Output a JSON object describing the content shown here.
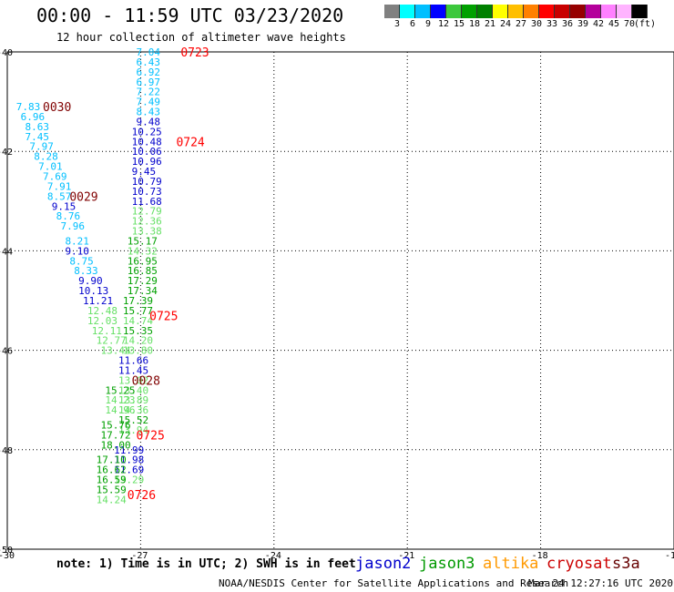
{
  "header": {
    "title": "00:00 - 11:59 UTC 03/23/2020",
    "subtitle": "12 hour collection of altimeter wave heights"
  },
  "legend": {
    "colors": [
      "#808080",
      "#00ffff",
      "#00bfff",
      "#0000ff",
      "#3cc83c",
      "#00a000",
      "#008000",
      "#ffff00",
      "#ffbf00",
      "#ff8000",
      "#ff0000",
      "#c80000",
      "#960000",
      "#b4009b",
      "#ff80ff",
      "#ffb4ff",
      "#000000"
    ],
    "labels": [
      "3",
      "6",
      "9",
      "12",
      "15",
      "18",
      "21",
      "24",
      "27",
      "30",
      "33",
      "36",
      "39",
      "42",
      "45",
      "70",
      "(ft)"
    ]
  },
  "axes": {
    "x_ticks": [
      "-30",
      "-27",
      "-24",
      "-21",
      "-18",
      "-15"
    ],
    "y_ticks": [
      "-40",
      "-42",
      "-44",
      "-46",
      "-48",
      "-50"
    ]
  },
  "footer": {
    "note": "note: 1) Time is in UTC; 2) SWH is in feet",
    "satellites": [
      {
        "name": "jason2",
        "color": "#0000cc"
      },
      {
        "name": "jason3",
        "color": "#009900"
      },
      {
        "name": "altika",
        "color": "#ff9900"
      },
      {
        "name": "cryosat",
        "color": "#cc0000"
      },
      {
        "name": "s3a",
        "color": "#660000"
      }
    ],
    "credit": "NOAA/NESDIS Center for Satellite Applications and Research",
    "timestamp": "Mar 24 12:27:16 UTC 2020"
  },
  "track_labels": [
    {
      "text": "0723",
      "color": "#ff0000",
      "lon": -26.1,
      "lat": -40.0
    },
    {
      "text": "0724",
      "color": "#ff0000",
      "lon": -26.2,
      "lat": -41.8
    },
    {
      "text": "0030",
      "color": "#800000",
      "lon": -29.2,
      "lat": -41.1
    },
    {
      "text": "0029",
      "color": "#800000",
      "lon": -28.6,
      "lat": -42.9
    },
    {
      "text": "0725",
      "color": "#ff0000",
      "lon": -26.8,
      "lat": -45.3
    },
    {
      "text": "0028",
      "color": "#800000",
      "lon": -27.2,
      "lat": -46.6
    },
    {
      "text": "0725",
      "color": "#ff0000",
      "lon": -27.1,
      "lat": -47.7
    },
    {
      "text": "0726",
      "color": "#ff0000",
      "lon": -27.3,
      "lat": -48.9
    }
  ],
  "chart_data": {
    "type": "scatter",
    "title": "12 hour collection of altimeter wave heights",
    "xlim": [
      -30,
      -15
    ],
    "ylim": [
      -50,
      -40
    ],
    "grid": true,
    "points": [
      {
        "label": "7.04",
        "lon": -27.1,
        "lat": -40.0,
        "color": "#00bfff"
      },
      {
        "label": "6.43",
        "lon": -27.1,
        "lat": -40.2,
        "color": "#00bfff"
      },
      {
        "label": "6.92",
        "lon": -27.1,
        "lat": -40.4,
        "color": "#00bfff"
      },
      {
        "label": "6.97",
        "lon": -27.1,
        "lat": -40.6,
        "color": "#00bfff"
      },
      {
        "label": "7.22",
        "lon": -27.1,
        "lat": -40.8,
        "color": "#00bfff"
      },
      {
        "label": "7.49",
        "lon": -27.1,
        "lat": -41.0,
        "color": "#00bfff"
      },
      {
        "label": "8.43",
        "lon": -27.1,
        "lat": -41.2,
        "color": "#00bfff"
      },
      {
        "label": "9.48",
        "lon": -27.1,
        "lat": -41.4,
        "color": "#0000cc"
      },
      {
        "label": "10.25",
        "lon": -27.2,
        "lat": -41.6,
        "color": "#0000cc"
      },
      {
        "label": "10.48",
        "lon": -27.2,
        "lat": -41.8,
        "color": "#0000cc"
      },
      {
        "label": "10.06",
        "lon": -27.2,
        "lat": -42.0,
        "color": "#0000cc"
      },
      {
        "label": "10.96",
        "lon": -27.2,
        "lat": -42.2,
        "color": "#0000cc"
      },
      {
        "label": "9.45",
        "lon": -27.2,
        "lat": -42.4,
        "color": "#0000cc"
      },
      {
        "label": "10.79",
        "lon": -27.2,
        "lat": -42.6,
        "color": "#0000cc"
      },
      {
        "label": "10.73",
        "lon": -27.2,
        "lat": -42.8,
        "color": "#0000cc"
      },
      {
        "label": "11.68",
        "lon": -27.2,
        "lat": -43.0,
        "color": "#0000cc"
      },
      {
        "label": "12.79",
        "lon": -27.2,
        "lat": -43.2,
        "color": "#66e066"
      },
      {
        "label": "12.36",
        "lon": -27.2,
        "lat": -43.4,
        "color": "#66e066"
      },
      {
        "label": "13.38",
        "lon": -27.2,
        "lat": -43.6,
        "color": "#66e066"
      },
      {
        "label": "15.17",
        "lon": -27.3,
        "lat": -43.8,
        "color": "#00a000"
      },
      {
        "label": "14.32",
        "lon": -27.3,
        "lat": -44.0,
        "color": "#66e066"
      },
      {
        "label": "16.95",
        "lon": -27.3,
        "lat": -44.2,
        "color": "#00a000"
      },
      {
        "label": "16.85",
        "lon": -27.3,
        "lat": -44.4,
        "color": "#00a000"
      },
      {
        "label": "17.29",
        "lon": -27.3,
        "lat": -44.6,
        "color": "#00a000"
      },
      {
        "label": "17.34",
        "lon": -27.3,
        "lat": -44.8,
        "color": "#00a000"
      },
      {
        "label": "17.39",
        "lon": -27.4,
        "lat": -45.0,
        "color": "#00a000"
      },
      {
        "label": "15.77",
        "lon": -27.4,
        "lat": -45.2,
        "color": "#00a000"
      },
      {
        "label": "14.74",
        "lon": -27.4,
        "lat": -45.4,
        "color": "#66e066"
      },
      {
        "label": "15.35",
        "lon": -27.4,
        "lat": -45.6,
        "color": "#00a000"
      },
      {
        "label": "14.20",
        "lon": -27.4,
        "lat": -45.8,
        "color": "#66e066"
      },
      {
        "label": "13.80",
        "lon": -27.4,
        "lat": -46.0,
        "color": "#66e066"
      },
      {
        "label": "11.66",
        "lon": -27.5,
        "lat": -46.2,
        "color": "#0000cc"
      },
      {
        "label": "11.45",
        "lon": -27.5,
        "lat": -46.4,
        "color": "#0000cc"
      },
      {
        "label": "13.02",
        "lon": -27.5,
        "lat": -46.6,
        "color": "#66e066"
      },
      {
        "label": "13.40",
        "lon": -27.5,
        "lat": -46.8,
        "color": "#66e066"
      },
      {
        "label": "13.89",
        "lon": -27.5,
        "lat": -47.0,
        "color": "#66e066"
      },
      {
        "label": "14.36",
        "lon": -27.5,
        "lat": -47.2,
        "color": "#66e066"
      },
      {
        "label": "15.52",
        "lon": -27.5,
        "lat": -47.4,
        "color": "#00a000"
      },
      {
        "label": "13.94",
        "lon": -27.5,
        "lat": -47.6,
        "color": "#66e066"
      },
      {
        "label": "11.99",
        "lon": -27.6,
        "lat": -48.0,
        "color": "#0000cc"
      },
      {
        "label": "11.98",
        "lon": -27.6,
        "lat": -48.2,
        "color": "#0000cc"
      },
      {
        "label": "11.69",
        "lon": -27.6,
        "lat": -48.4,
        "color": "#0000cc"
      },
      {
        "label": "13.29",
        "lon": -27.6,
        "lat": -48.6,
        "color": "#66e066"
      },
      {
        "label": "7.83",
        "lon": -29.8,
        "lat": -41.1,
        "color": "#00bfff"
      },
      {
        "label": "6.96",
        "lon": -29.7,
        "lat": -41.3,
        "color": "#00bfff"
      },
      {
        "label": "8.63",
        "lon": -29.6,
        "lat": -41.5,
        "color": "#00bfff"
      },
      {
        "label": "7.45",
        "lon": -29.6,
        "lat": -41.7,
        "color": "#00bfff"
      },
      {
        "label": "7.97",
        "lon": -29.5,
        "lat": -41.9,
        "color": "#00bfff"
      },
      {
        "label": "8.28",
        "lon": -29.4,
        "lat": -42.1,
        "color": "#00bfff"
      },
      {
        "label": "7.01",
        "lon": -29.3,
        "lat": -42.3,
        "color": "#00bfff"
      },
      {
        "label": "7.69",
        "lon": -29.2,
        "lat": -42.5,
        "color": "#00bfff"
      },
      {
        "label": "7.91",
        "lon": -29.1,
        "lat": -42.7,
        "color": "#00bfff"
      },
      {
        "label": "8.57",
        "lon": -29.1,
        "lat": -42.9,
        "color": "#00bfff"
      },
      {
        "label": "9.15",
        "lon": -29.0,
        "lat": -43.1,
        "color": "#0000cc"
      },
      {
        "label": "8.76",
        "lon": -28.9,
        "lat": -43.3,
        "color": "#00bfff"
      },
      {
        "label": "7.96",
        "lon": -28.8,
        "lat": -43.5,
        "color": "#00bfff"
      },
      {
        "label": "8.21",
        "lon": -28.7,
        "lat": -43.8,
        "color": "#00bfff"
      },
      {
        "label": "9.10",
        "lon": -28.7,
        "lat": -44.0,
        "color": "#0000cc"
      },
      {
        "label": "8.75",
        "lon": -28.6,
        "lat": -44.2,
        "color": "#00bfff"
      },
      {
        "label": "8.33",
        "lon": -28.5,
        "lat": -44.4,
        "color": "#00bfff"
      },
      {
        "label": "9.90",
        "lon": -28.4,
        "lat": -44.6,
        "color": "#0000cc"
      },
      {
        "label": "10.13",
        "lon": -28.4,
        "lat": -44.8,
        "color": "#0000cc"
      },
      {
        "label": "11.21",
        "lon": -28.3,
        "lat": -45.0,
        "color": "#0000cc"
      },
      {
        "label": "12.48",
        "lon": -28.2,
        "lat": -45.2,
        "color": "#66e066"
      },
      {
        "label": "12.03",
        "lon": -28.2,
        "lat": -45.4,
        "color": "#66e066"
      },
      {
        "label": "12.11",
        "lon": -28.1,
        "lat": -45.6,
        "color": "#66e066"
      },
      {
        "label": "12.77",
        "lon": -28.0,
        "lat": -45.8,
        "color": "#66e066"
      },
      {
        "label": "13.44",
        "lon": -27.9,
        "lat": -46.0,
        "color": "#66e066"
      },
      {
        "label": "15.25",
        "lon": -27.8,
        "lat": -46.8,
        "color": "#00a000"
      },
      {
        "label": "14.23",
        "lon": -27.8,
        "lat": -47.0,
        "color": "#66e066"
      },
      {
        "label": "14.96",
        "lon": -27.8,
        "lat": -47.2,
        "color": "#66e066"
      },
      {
        "label": "15.76",
        "lon": -27.9,
        "lat": -47.5,
        "color": "#00a000"
      },
      {
        "label": "17.72",
        "lon": -27.9,
        "lat": -47.7,
        "color": "#00a000"
      },
      {
        "label": "18.00",
        "lon": -27.9,
        "lat": -47.9,
        "color": "#00a000"
      },
      {
        "label": "17.10",
        "lon": -28.0,
        "lat": -48.2,
        "color": "#00a000"
      },
      {
        "label": "16.62",
        "lon": -28.0,
        "lat": -48.4,
        "color": "#00a000"
      },
      {
        "label": "16.59",
        "lon": -28.0,
        "lat": -48.6,
        "color": "#00a000"
      },
      {
        "label": "15.59",
        "lon": -28.0,
        "lat": -48.8,
        "color": "#00a000"
      },
      {
        "label": "14.24",
        "lon": -28.0,
        "lat": -49.0,
        "color": "#66e066"
      }
    ]
  }
}
